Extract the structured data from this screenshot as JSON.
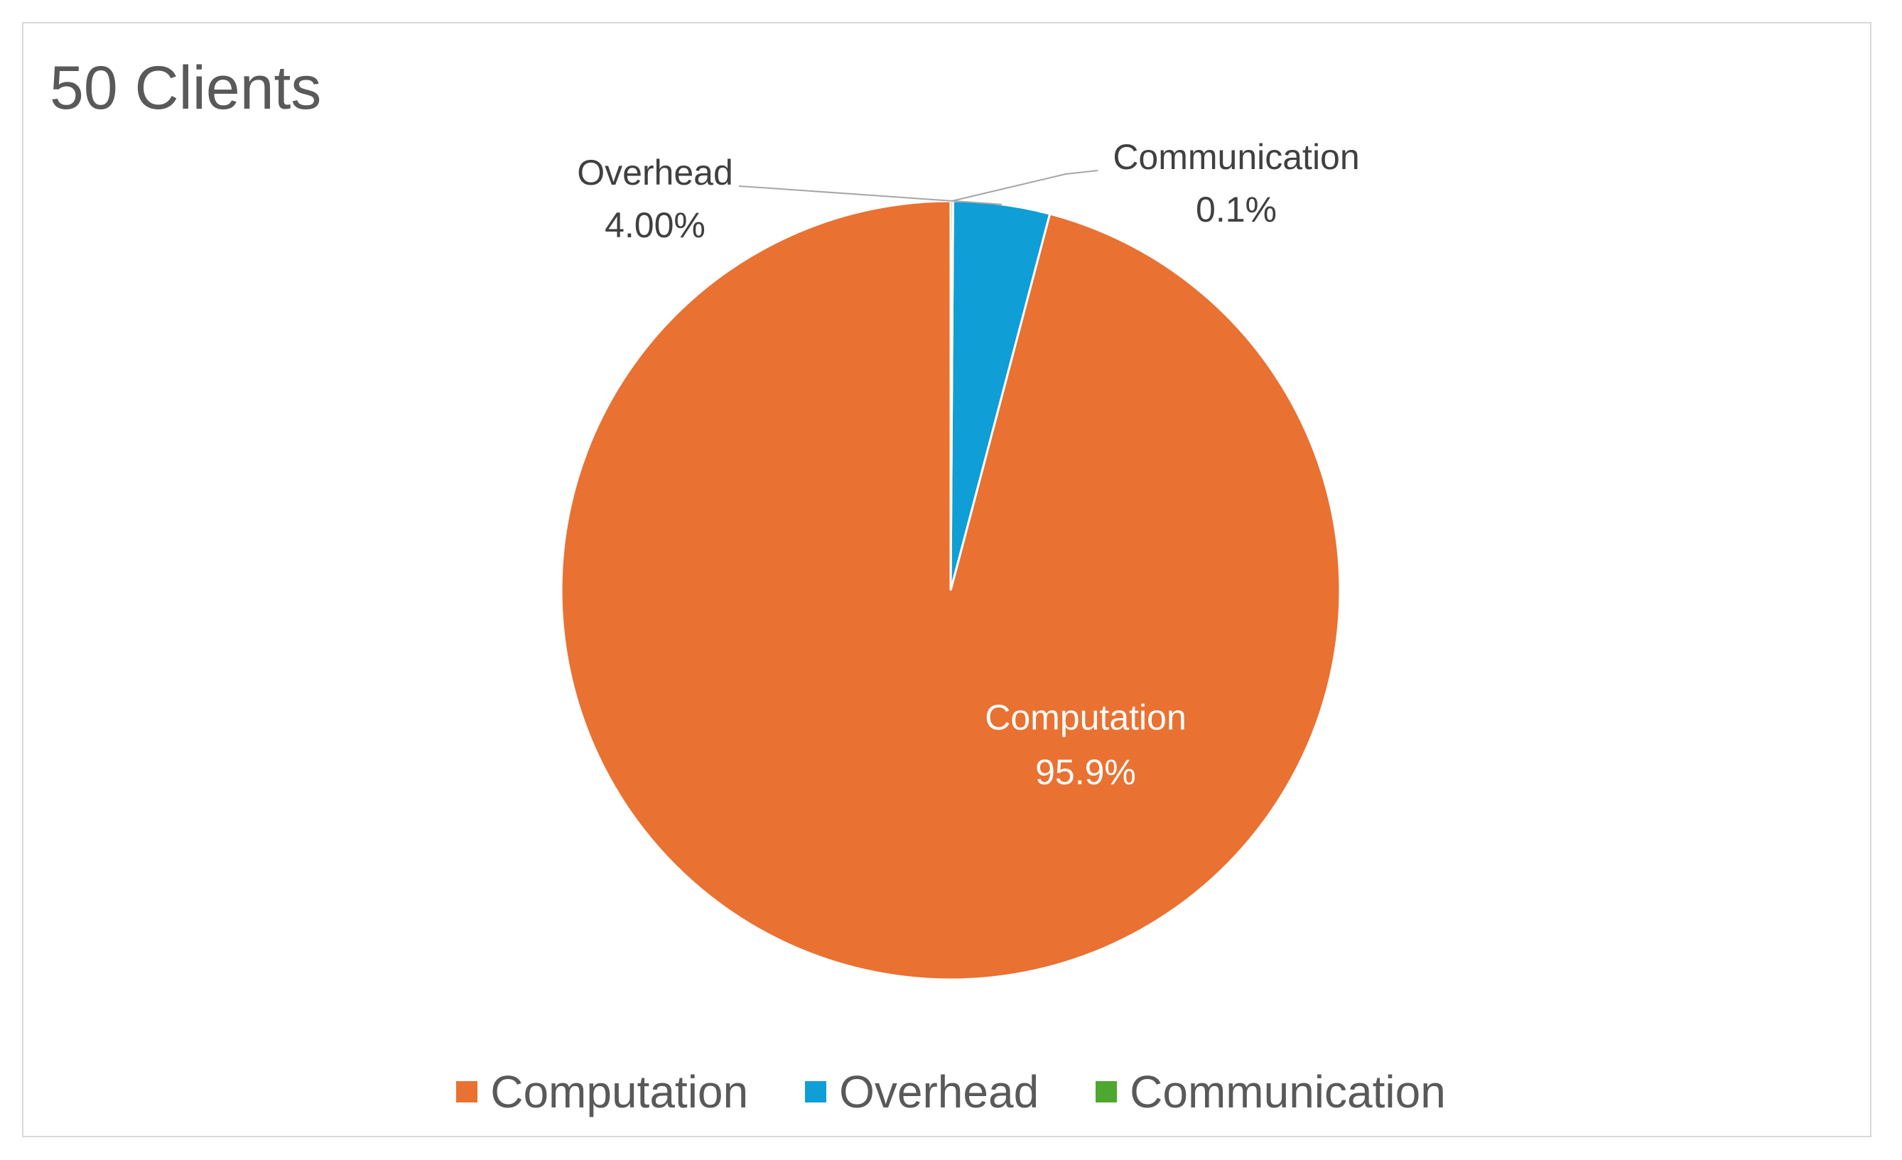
{
  "chart_data": {
    "type": "pie",
    "title": "50 Clients",
    "slices": [
      {
        "label": "Computation",
        "value": 95.9,
        "display": "95.9%",
        "color": "#E97132"
      },
      {
        "label": "Overhead",
        "value": 4.0,
        "display": "4.00%",
        "color": "#0F9ED5"
      },
      {
        "label": "Communication",
        "value": 0.1,
        "display": "0.1%",
        "color": "#4EA72E"
      }
    ],
    "start_angle_deg": 0,
    "direction": "counterclockwise",
    "legend_position": "bottom",
    "slice_border_color": "#ffffff",
    "label_color_inside": "#ffffff",
    "label_color_outside": "#404040",
    "leader_line_color": "#a6a6a6"
  },
  "legend": {
    "items": [
      {
        "label": "Computation",
        "color": "#E97132"
      },
      {
        "label": "Overhead",
        "color": "#0F9ED5"
      },
      {
        "label": "Communication",
        "color": "#4EA72E"
      }
    ]
  }
}
